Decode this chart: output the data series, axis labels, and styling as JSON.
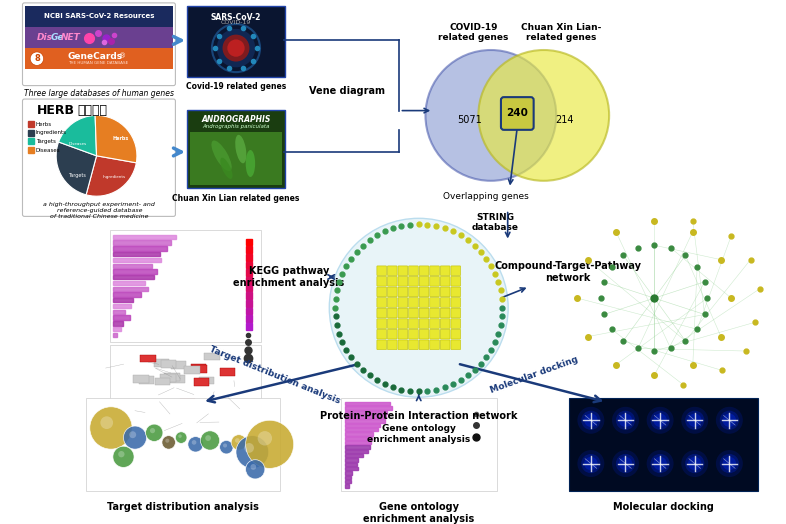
{
  "bg_color": "#ffffff",
  "arrow_color": "#1a3a7a",
  "venn_left_color": "#7b8fcc",
  "venn_right_color": "#eaea60",
  "venn_left_num": "5071",
  "venn_overlap_num": "240",
  "venn_right_num": "214",
  "venn_left_label": "COVID-19\nrelated genes",
  "venn_right_label": "Chuan Xin Lian-\nrelated genes",
  "venn_bottom_label": "Overlapping genes",
  "string_label": "STRING\ndatabase",
  "kegg_label": "KEGG pathway\nenrichment analysis",
  "ppi_label": "Protein-Protein Interaction network",
  "compound_label": "Compound-Target-Pathway\nnetwork",
  "go_label": "Gene ontology\nenrichment analysis",
  "docking_label": "Molecular docking",
  "target_dist_label": "Target distribution analysis",
  "vene_label": "Vene diagram",
  "top_left_caption": "Three large databases of human genes",
  "top_left_herb_caption": "a high-throughput experiment- and\nreference-guided database\nof traditional Chinese medicine",
  "covid_caption": "Covid-19 related genes",
  "andrographis_caption": "Chuan Xin Lian related genes",
  "ncbi_color": "#1a2a5e",
  "disgenet_color": "#7b5ea7",
  "genecards_color": "#e06020",
  "ppi_outer_colors": [
    "#2d6e2d",
    "#2d8a4e",
    "#4aaa6a",
    "#c8c820",
    "#e8e830"
  ],
  "ppi_dot_colors_left": "#2a7a40",
  "ppi_dot_colors_right": "#3a9a60",
  "ppi_dot_colors_top": "#c8c820",
  "ppi_square_color": "#e8e830",
  "ppi_square_edge": "#c8c800",
  "network_node_green": "#4a9a50",
  "network_node_yellow": "#d4b820",
  "network_line_color": "#90c890"
}
